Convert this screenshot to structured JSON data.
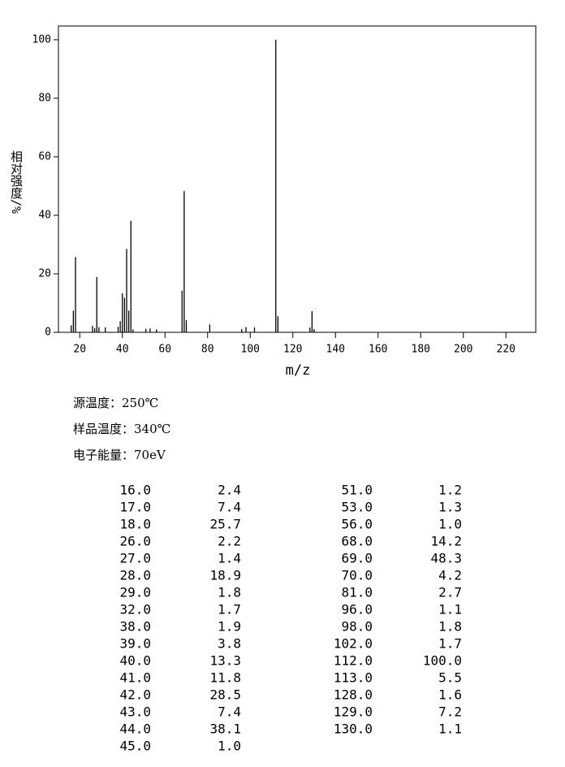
{
  "chart_data": {
    "type": "bar",
    "x_label": "m/z",
    "y_label": "相对强度/%",
    "x": [
      16,
      17,
      18,
      26,
      27,
      28,
      29,
      32,
      38,
      39,
      40,
      41,
      42,
      43,
      44,
      45,
      51,
      53,
      56,
      68,
      69,
      70,
      81,
      96,
      98,
      102,
      112,
      113,
      128,
      129,
      130
    ],
    "x_labels": [
      "16.0",
      "17.0",
      "18.0",
      "26.0",
      "27.0",
      "28.0",
      "29.0",
      "32.0",
      "38.0",
      "39.0",
      "40.0",
      "41.0",
      "42.0",
      "43.0",
      "44.0",
      "45.0",
      "51.0",
      "53.0",
      "56.0",
      "68.0",
      "69.0",
      "70.0",
      "81.0",
      "96.0",
      "98.0",
      "102.0",
      "112.0",
      "113.0",
      "128.0",
      "129.0",
      "130.0"
    ],
    "values": [
      2.4,
      7.4,
      25.7,
      2.2,
      1.4,
      18.9,
      1.8,
      1.7,
      1.9,
      3.8,
      13.3,
      11.8,
      28.5,
      7.4,
      38.1,
      1.0,
      1.2,
      1.3,
      1.0,
      14.2,
      48.3,
      4.2,
      2.7,
      1.1,
      1.8,
      1.7,
      100.0,
      5.5,
      1.6,
      7.2,
      1.1
    ],
    "value_labels": [
      "2.4",
      "7.4",
      "25.7",
      "2.2",
      "1.4",
      "18.9",
      "1.8",
      "1.7",
      "1.9",
      "3.8",
      "13.3",
      "11.8",
      "28.5",
      "7.4",
      "38.1",
      "1.0",
      "1.2",
      "1.3",
      "1.0",
      "14.2",
      "48.3",
      "4.2",
      "2.7",
      "1.1",
      "1.8",
      "1.7",
      "100.0",
      "5.5",
      "1.6",
      "7.2",
      "1.1"
    ],
    "color": "#000000",
    "xlim": [
      10,
      234
    ],
    "xticks": [
      20,
      40,
      60,
      80,
      100,
      120,
      140,
      160,
      180,
      200,
      220
    ],
    "ylim": [
      0,
      104.7
    ],
    "yticks": [
      0,
      20,
      40,
      60,
      80,
      100
    ],
    "grid": false
  },
  "info": [
    "源温度：250℃",
    "样品温度：340℃",
    "电子能量：70eV"
  ]
}
